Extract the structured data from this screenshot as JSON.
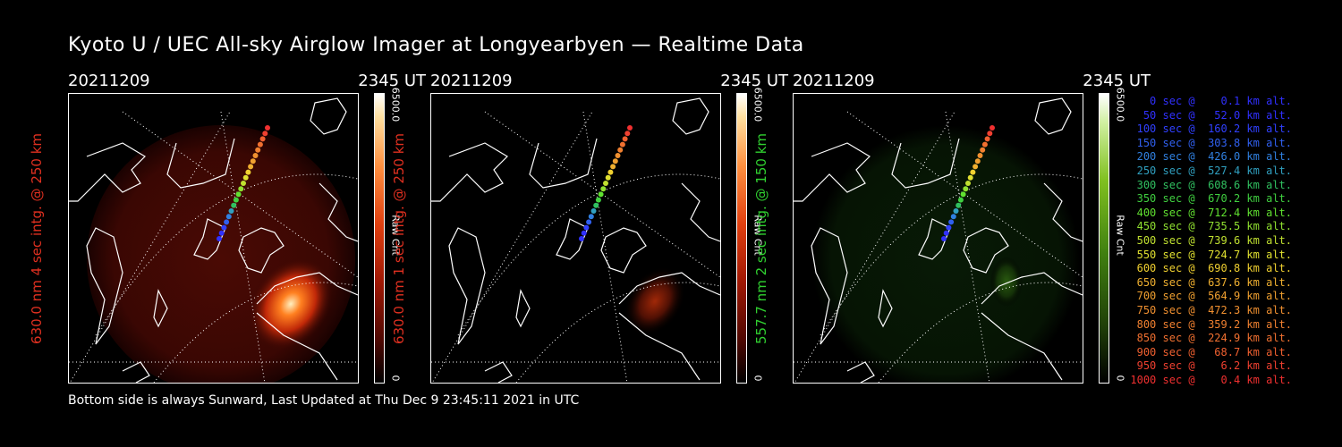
{
  "title": "Kyoto U / UEC All-sky Airglow Imager at Longyearbyen — Realtime Data",
  "footer": "Bottom side is always Sunward, Last Updated at Thu Dec  9 23:45:11 2021 in UTC",
  "colors": {
    "red_label": "#e03020",
    "green_label": "#30d030",
    "background": "#000000"
  },
  "panels": [
    {
      "date": "20211209",
      "time": "2345 UT",
      "ylabel": "630.0 nm 4 sec intg. @ 250 km",
      "colorbar_max": "6500.0",
      "colorbar_unit": "Raw Cnt",
      "colorbar_min": "0",
      "colormap": "red-hot"
    },
    {
      "date": "20211209",
      "time": "2345 UT",
      "ylabel": "630.0 nm 1 sec intg. @ 250 km",
      "colorbar_max": "6500.0",
      "colorbar_unit": "Raw Cnt",
      "colorbar_min": "0",
      "colormap": "red-hot"
    },
    {
      "date": "20211209",
      "time": "2345 UT",
      "ylabel": "557.7 nm 2 sec intg. @ 150 km",
      "colorbar_max": "6500.0",
      "colorbar_unit": "Raw Cnt",
      "colorbar_min": "0",
      "colormap": "green"
    }
  ],
  "legend": [
    {
      "text": "   0 sec @    0.1 km alt.",
      "color": "#3030ff"
    },
    {
      "text": "  50 sec @   52.0 km alt.",
      "color": "#3030ff"
    },
    {
      "text": " 100 sec @  160.2 km alt.",
      "color": "#3040ff"
    },
    {
      "text": " 150 sec @  303.8 km alt.",
      "color": "#3060f0"
    },
    {
      "text": " 200 sec @  426.0 km alt.",
      "color": "#3080e0"
    },
    {
      "text": " 250 sec @  527.4 km alt.",
      "color": "#30a0c0"
    },
    {
      "text": " 300 sec @  608.6 km alt.",
      "color": "#30c060"
    },
    {
      "text": " 350 sec @  670.2 km alt.",
      "color": "#40d040"
    },
    {
      "text": " 400 sec @  712.4 km alt.",
      "color": "#60e030"
    },
    {
      "text": " 450 sec @  735.5 km alt.",
      "color": "#90e030"
    },
    {
      "text": " 500 sec @  739.6 km alt.",
      "color": "#c0e030"
    },
    {
      "text": " 550 sec @  724.7 km alt.",
      "color": "#e0e030"
    },
    {
      "text": " 600 sec @  690.8 km alt.",
      "color": "#f0d030"
    },
    {
      "text": " 650 sec @  637.6 km alt.",
      "color": "#f0b030"
    },
    {
      "text": " 700 sec @  564.9 km alt.",
      "color": "#f0a030"
    },
    {
      "text": " 750 sec @  472.3 km alt.",
      "color": "#f09030"
    },
    {
      "text": " 800 sec @  359.2 km alt.",
      "color": "#f08030"
    },
    {
      "text": " 850 sec @  224.9 km alt.",
      "color": "#f07030"
    },
    {
      "text": " 900 sec @   68.7 km alt.",
      "color": "#f06030"
    },
    {
      "text": " 950 sec @    6.2 km alt.",
      "color": "#f04030"
    },
    {
      "text": "1000 sec @    0.4 km alt.",
      "color": "#f03030"
    }
  ]
}
